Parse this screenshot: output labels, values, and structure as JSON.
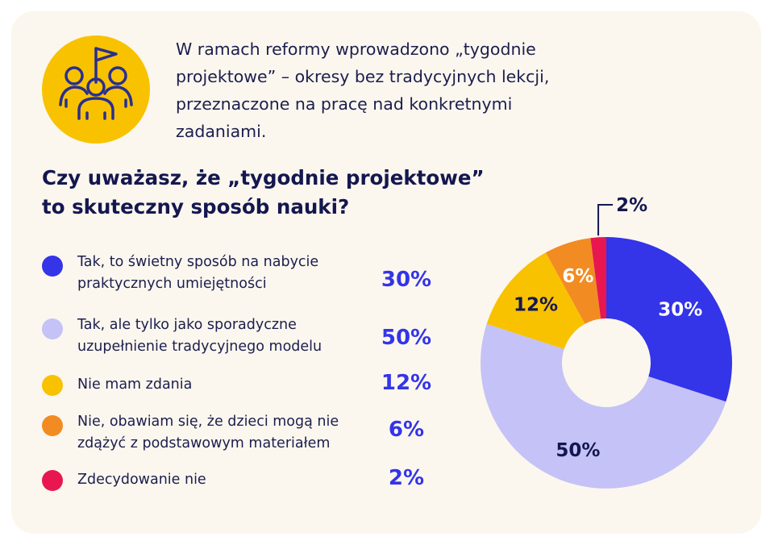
{
  "intro_text": "W ramach reformy wprowadzono „tygodnie projektowe” – okresy bez tradycyjnych lekcji, przeznaczone na pracę nad konkretnymi zadaniami.",
  "badge_icon": "team-flag-icon",
  "chart_data": {
    "type": "pie",
    "donut": true,
    "title": "Czy uważasz, że „tygodnie projektowe” to skuteczny sposób nauki?",
    "legend_position": "left",
    "unit": "%",
    "slices": [
      {
        "label": "Tak, to świetny sposób na nabycie praktycznych umiejętności",
        "value": 30,
        "display": "30%",
        "color": "#3434e8",
        "label_color": "#ffffff"
      },
      {
        "label": "Tak, ale tylko jako sporadyczne uzupełnienie tradycyjnego modelu",
        "value": 50,
        "display": "50%",
        "color": "#c4c2f6",
        "label_color": "#14174f"
      },
      {
        "label": "Nie mam zdania",
        "value": 12,
        "display": "12%",
        "color": "#f8c200",
        "label_color": "#14174f"
      },
      {
        "label": "Nie, obawiam się, że dzieci mogą nie zdążyć z podstawowym materiałem",
        "value": 6,
        "display": "6%",
        "color": "#f28c22",
        "label_color": "#ffffff"
      },
      {
        "label": "Zdecydowanie nie",
        "value": 2,
        "display": "2%",
        "color": "#e8174f",
        "label_color": "#14174f"
      }
    ]
  }
}
